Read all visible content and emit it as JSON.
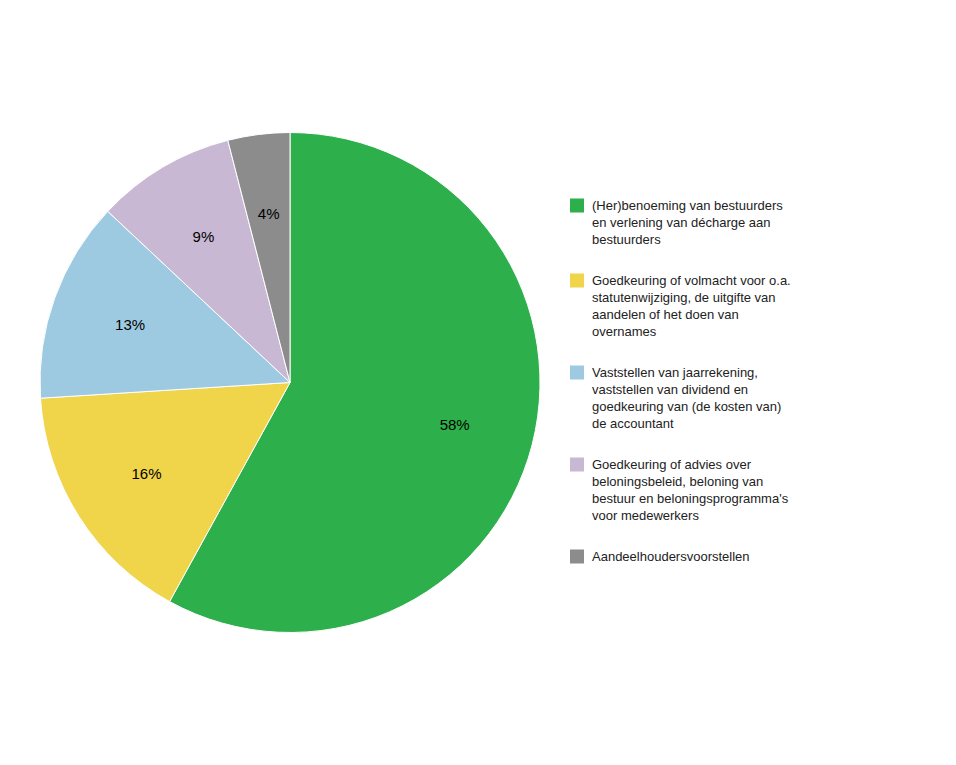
{
  "chart_data": {
    "type": "pie",
    "categories": [
      "(Her)benoeming van bestuurders\nen verlening van décharge aan\nbestuurders",
      "Goedkeuring of volmacht voor o.a.\nstatutenwijziging, de uitgifte van\naandelen of het doen van\novernames",
      "Vaststellen van jaarrekening,\nvaststellen van dividend en\ngoedkeuring van (de kosten van)\nde accountant",
      "Goedkeuring of advies over\nbeloningsbeleid, beloning van\nbestuur en beloningsprogramma's\nvoor medewerkers",
      "Aandeelhoudersvoorstellen"
    ],
    "values": [
      58,
      16,
      13,
      9,
      4
    ],
    "value_labels": [
      "58%",
      "16%",
      "13%",
      "9%",
      "4%"
    ],
    "colors": [
      "#2db04b",
      "#f0d44a",
      "#9dcae1",
      "#c9b8d4",
      "#8c8c8c"
    ],
    "data_labels": true,
    "legend": "right"
  }
}
